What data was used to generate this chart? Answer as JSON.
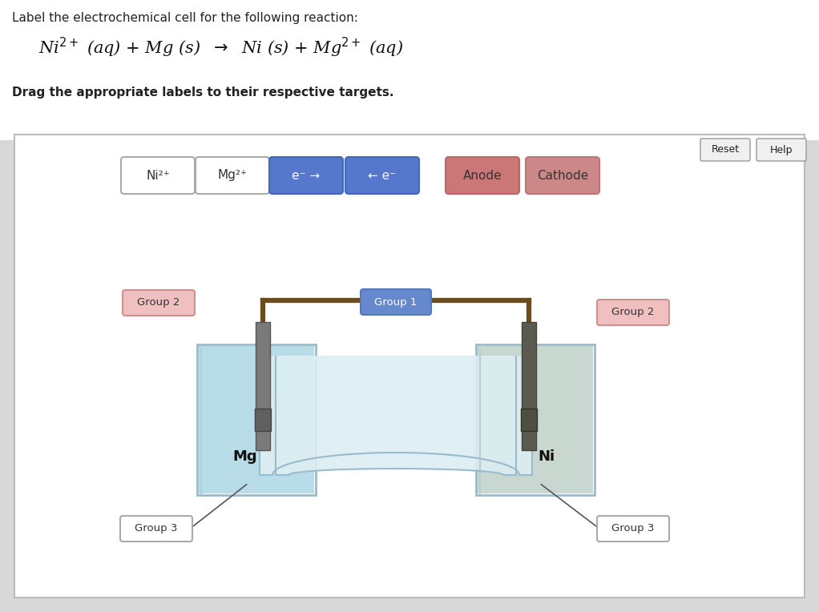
{
  "title_text": "Label the electrochemical cell for the following reaction:",
  "drag_instruction": "Drag the appropriate labels to their respective targets.",
  "bg_color": "#d8d8d8",
  "panel_bg": "#ffffff",
  "label_buttons": [
    {
      "text": "Ni²⁺",
      "bg": "#ffffff",
      "edge": "#aaaaaa",
      "textcolor": "#333333"
    },
    {
      "text": "Mg²⁺",
      "bg": "#ffffff",
      "edge": "#aaaaaa",
      "textcolor": "#333333"
    },
    {
      "text": "e⁻ →",
      "bg": "#5577cc",
      "edge": "#4466bb",
      "textcolor": "#ffffff"
    },
    {
      "text": "← e⁻",
      "bg": "#5577cc",
      "edge": "#4466bb",
      "textcolor": "#ffffff"
    },
    {
      "text": "Anode",
      "bg": "#cc7777",
      "edge": "#bb6666",
      "textcolor": "#333333"
    },
    {
      "text": "Cathode",
      "bg": "#cc8888",
      "edge": "#bb7777",
      "textcolor": "#333333"
    }
  ],
  "group1": {
    "text": "Group 1",
    "bg": "#6688cc",
    "edge": "#5577bb",
    "textcolor": "#ffffff"
  },
  "group2_left": {
    "text": "Group 2",
    "bg": "#f0c0c0",
    "edge": "#d09090",
    "textcolor": "#333333"
  },
  "group2_right": {
    "text": "Group 2",
    "bg": "#f0c0c0",
    "edge": "#d09090",
    "textcolor": "#333333"
  },
  "group3_left": {
    "text": "Group 3",
    "bg": "#ffffff",
    "edge": "#aaaaaa",
    "textcolor": "#333333"
  },
  "group3_right": {
    "text": "Group 3",
    "bg": "#ffffff",
    "edge": "#aaaaaa",
    "textcolor": "#333333"
  },
  "reset_btn": {
    "text": "Reset",
    "bg": "#f0f0f0",
    "edge": "#999999"
  },
  "help_btn": {
    "text": "Help",
    "bg": "#f0f0f0",
    "edge": "#999999"
  },
  "wire_color": "#6b4c1e",
  "beaker_water_left": "#b8dde8",
  "beaker_water_right": "#c8d8d0",
  "beaker_glass": "#aacccc",
  "salt_bridge_fill": "#ddeef2",
  "salt_bridge_edge": "#99bbcc",
  "electrode_mg": "#7a7a7a",
  "electrode_ni": "#5a5a50",
  "mg_label": "Mg",
  "ni_label": "Ni"
}
